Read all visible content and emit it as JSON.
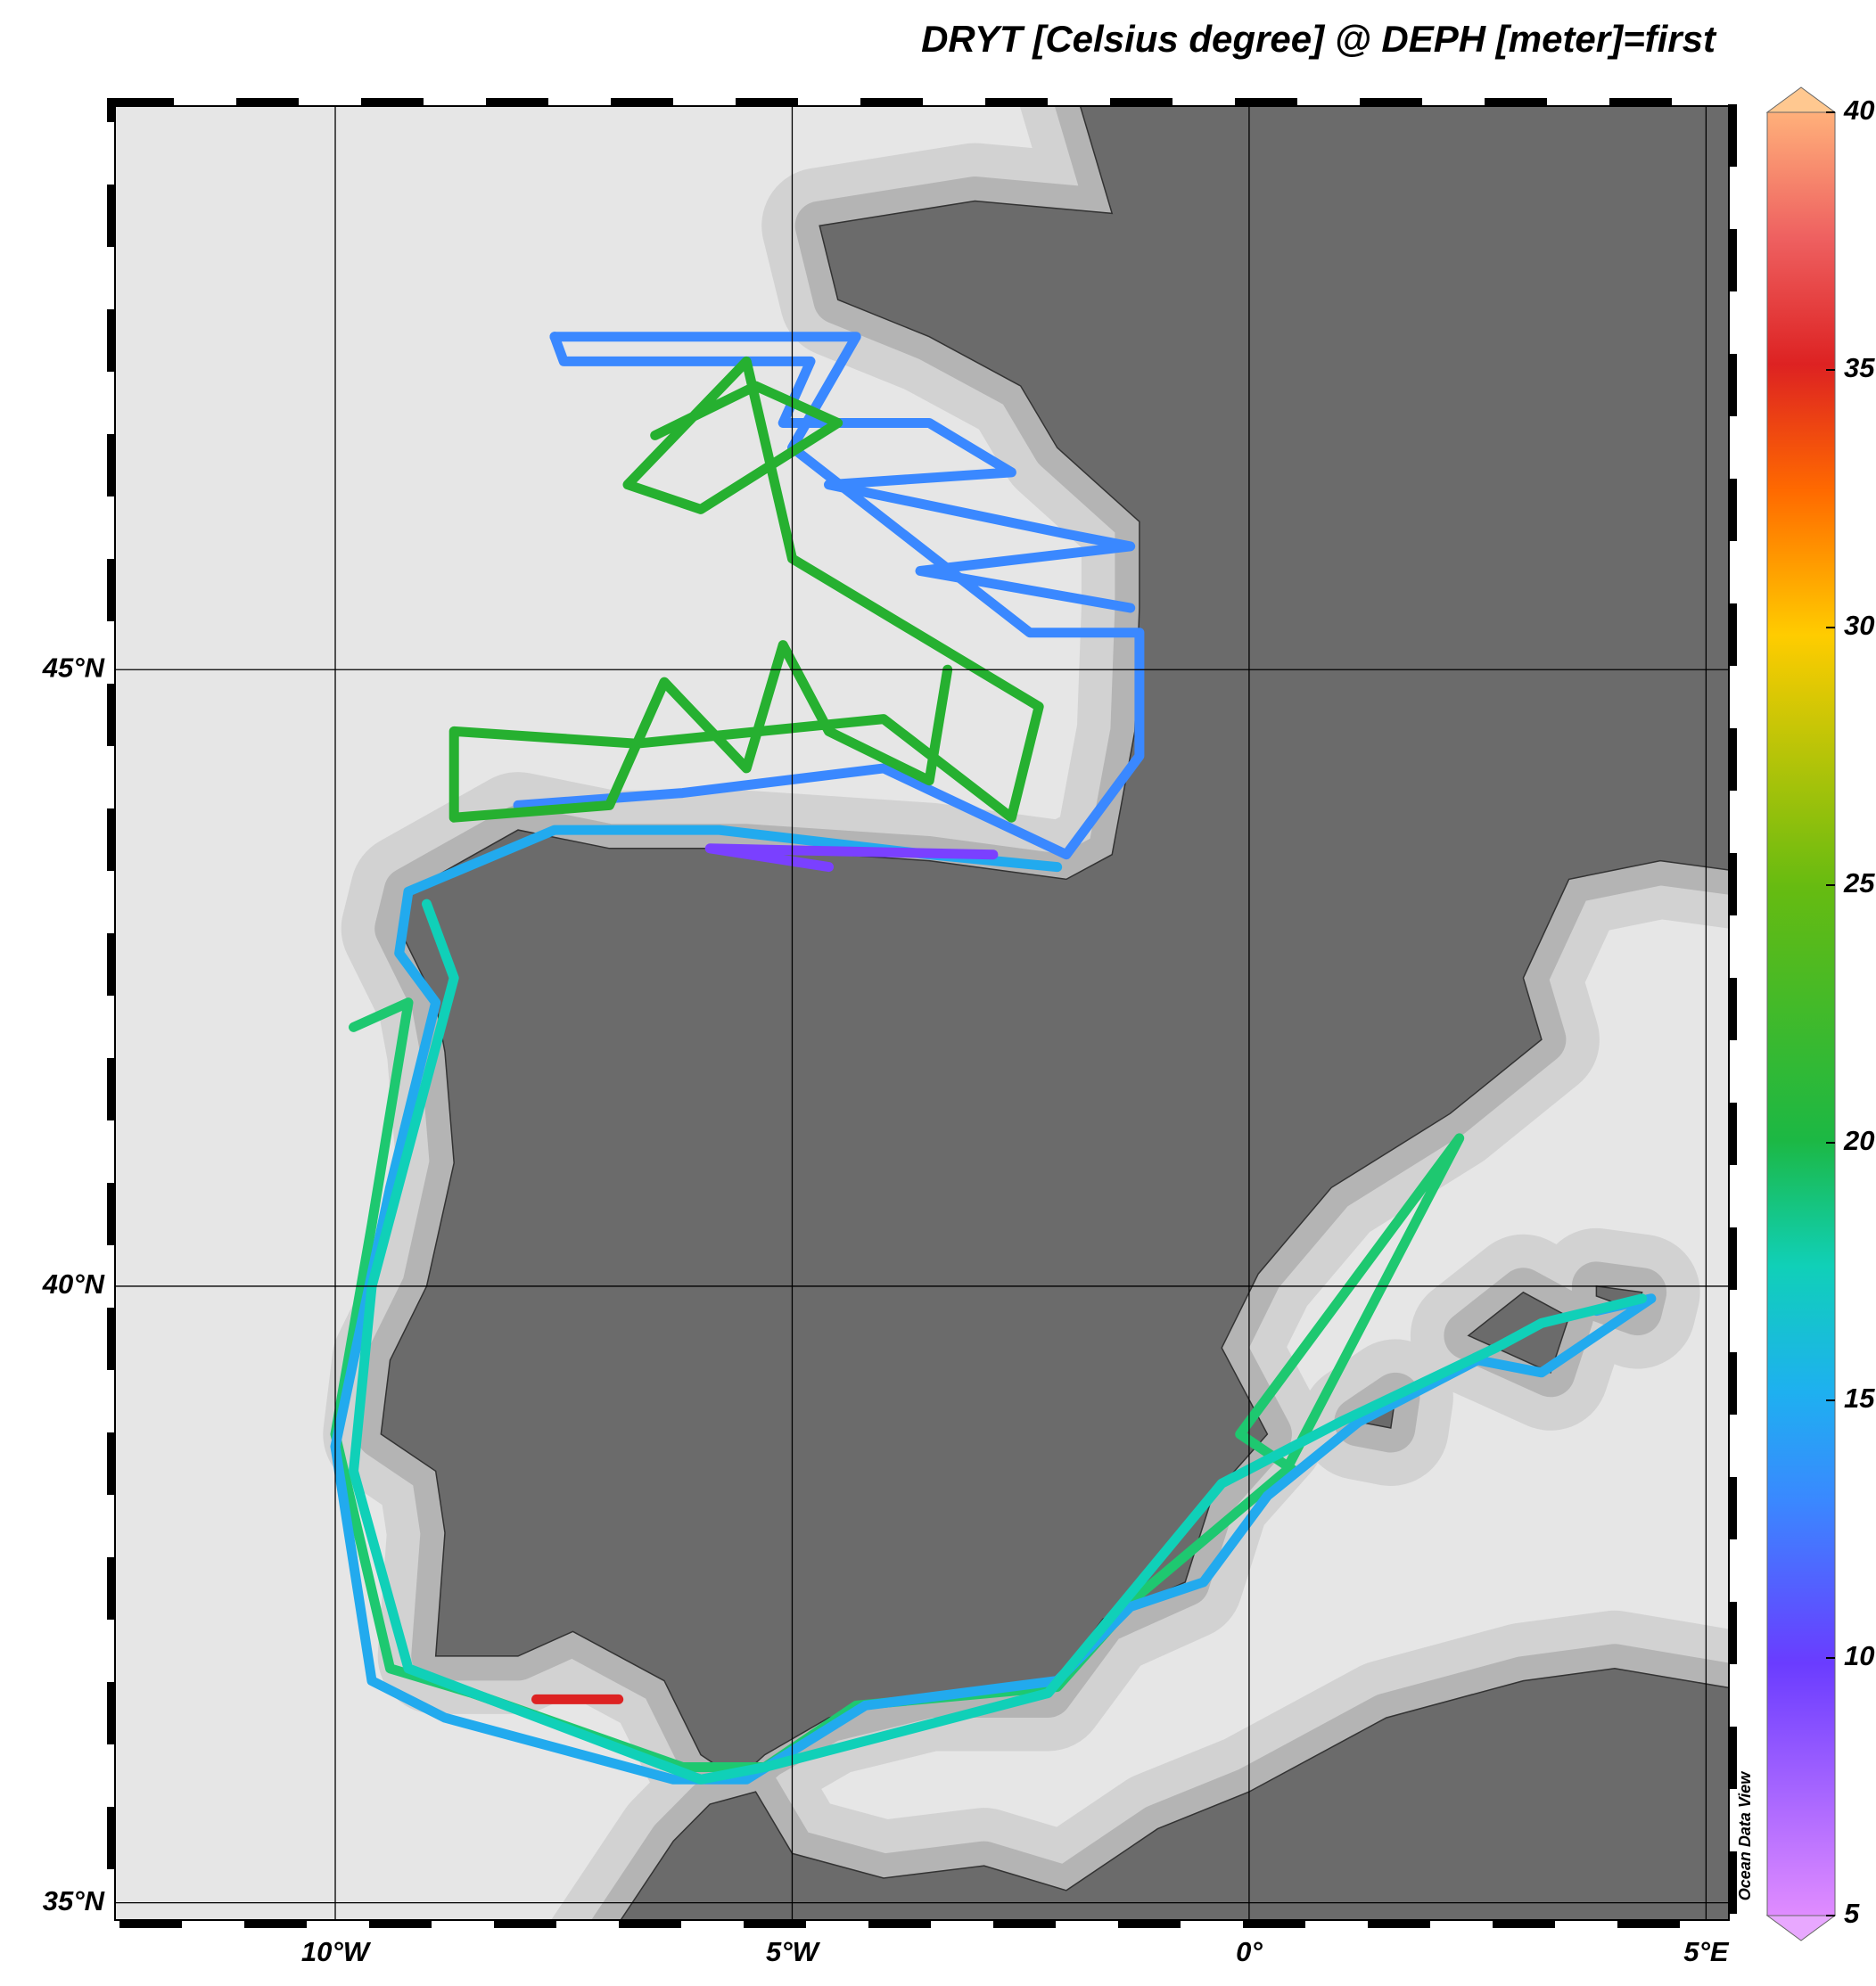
{
  "map": {
    "title": "DRYT [Celsius degree] @ DEPH [meter]=first",
    "xlim": [
      -12.41,
      5.25
    ],
    "ylim": [
      34.86,
      49.57
    ],
    "xticks": [
      {
        "value": -10,
        "label": "10°W"
      },
      {
        "value": -5,
        "label": "5°W"
      },
      {
        "value": 0,
        "label": "0°"
      },
      {
        "value": 5,
        "label": "5°E"
      }
    ],
    "yticks": [
      {
        "value": 35,
        "label": "35°N"
      },
      {
        "value": 40,
        "label": "40°N"
      },
      {
        "value": 45,
        "label": "45°N"
      }
    ],
    "credit": "Ocean Data View"
  },
  "colorbar": {
    "ylim": [
      5,
      40
    ],
    "yticks": [
      5,
      10,
      15,
      20,
      25,
      30,
      35,
      40
    ]
  }
}
